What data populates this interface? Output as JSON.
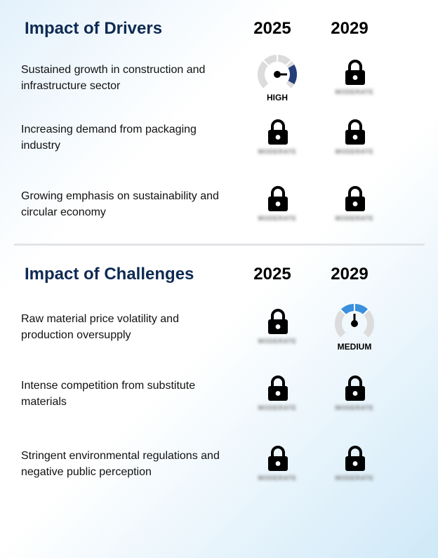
{
  "drivers": {
    "title": "Impact of Drivers",
    "years": [
      "2025",
      "2029"
    ],
    "rows": [
      {
        "text": "Sustained growth in construction and infrastructure sector",
        "cells": [
          {
            "type": "gauge",
            "level": "HIGH",
            "color": "#253f78"
          },
          {
            "type": "locked",
            "blurred_label": "MODERATE"
          }
        ]
      },
      {
        "text": "Increasing demand from packaging industry",
        "cells": [
          {
            "type": "locked",
            "blurred_label": "MODERATE"
          },
          {
            "type": "locked",
            "blurred_label": "MODERATE"
          }
        ]
      },
      {
        "text": "Growing emphasis on sustainability and circular economy",
        "cells": [
          {
            "type": "locked",
            "blurred_label": "MODERATE"
          },
          {
            "type": "locked",
            "blurred_label": "MODERATE"
          }
        ]
      }
    ]
  },
  "challenges": {
    "title": "Impact of Challenges",
    "years": [
      "2025",
      "2029"
    ],
    "rows": [
      {
        "text": "Raw material price volatility and production oversupply",
        "cells": [
          {
            "type": "locked",
            "blurred_label": "MODERATE"
          },
          {
            "type": "gauge",
            "level": "MEDIUM",
            "color": "#3a8fde"
          }
        ]
      },
      {
        "text": "Intense competition from substitute materials",
        "cells": [
          {
            "type": "locked",
            "blurred_label": "MODERATE"
          },
          {
            "type": "locked",
            "blurred_label": "MODERATE"
          }
        ]
      },
      {
        "text": "Stringent environmental regulations and negative public perception",
        "cells": [
          {
            "type": "locked",
            "blurred_label": "MODERATE"
          },
          {
            "type": "locked",
            "blurred_label": "MODERATE"
          }
        ]
      }
    ]
  },
  "icons": {
    "lock": "lock-icon",
    "gauge": "gauge-icon"
  },
  "colors": {
    "title": "#0e2a52",
    "gauge_track": "#dcdcdc",
    "divider": "#e2e4e6"
  }
}
